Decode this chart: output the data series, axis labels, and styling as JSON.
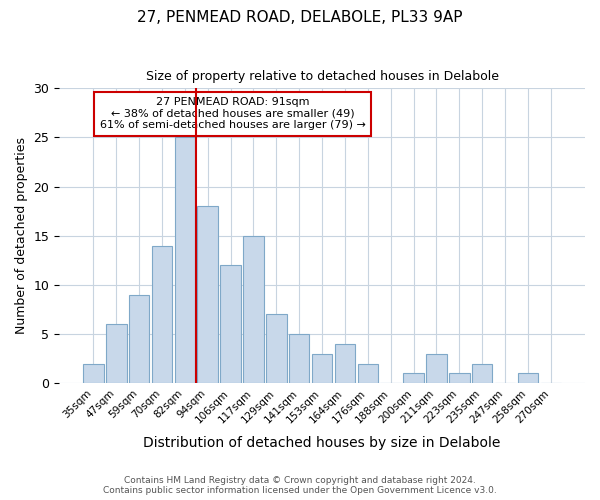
{
  "title1": "27, PENMEAD ROAD, DELABOLE, PL33 9AP",
  "title2": "Size of property relative to detached houses in Delabole",
  "xlabel": "Distribution of detached houses by size in Delabole",
  "ylabel": "Number of detached properties",
  "annotation_line1": "27 PENMEAD ROAD: 91sqm",
  "annotation_line2": "← 38% of detached houses are smaller (49)",
  "annotation_line3": "61% of semi-detached houses are larger (79) →",
  "footer1": "Contains HM Land Registry data © Crown copyright and database right 2024.",
  "footer2": "Contains public sector information licensed under the Open Government Licence v3.0.",
  "bar_labels": [
    "35sqm",
    "47sqm",
    "59sqm",
    "70sqm",
    "82sqm",
    "94sqm",
    "106sqm",
    "117sqm",
    "129sqm",
    "141sqm",
    "153sqm",
    "164sqm",
    "176sqm",
    "188sqm",
    "200sqm",
    "211sqm",
    "223sqm",
    "235sqm",
    "247sqm",
    "258sqm",
    "270sqm"
  ],
  "bar_values": [
    2,
    6,
    9,
    14,
    25,
    18,
    12,
    15,
    7,
    5,
    3,
    4,
    2,
    0,
    1,
    3,
    1,
    2,
    0,
    1,
    0
  ],
  "bar_color": "#c8d8ea",
  "bar_edgecolor": "#7fa8c8",
  "vline_x_index": 5,
  "vline_color": "#cc0000",
  "annotation_box_color": "#cc0000",
  "ylim": [
    0,
    30
  ],
  "bg_color": "#ffffff",
  "grid_color": "#c8d4e0",
  "title1_fontsize": 11,
  "title2_fontsize": 9,
  "ylabel_fontsize": 9,
  "xlabel_fontsize": 10
}
